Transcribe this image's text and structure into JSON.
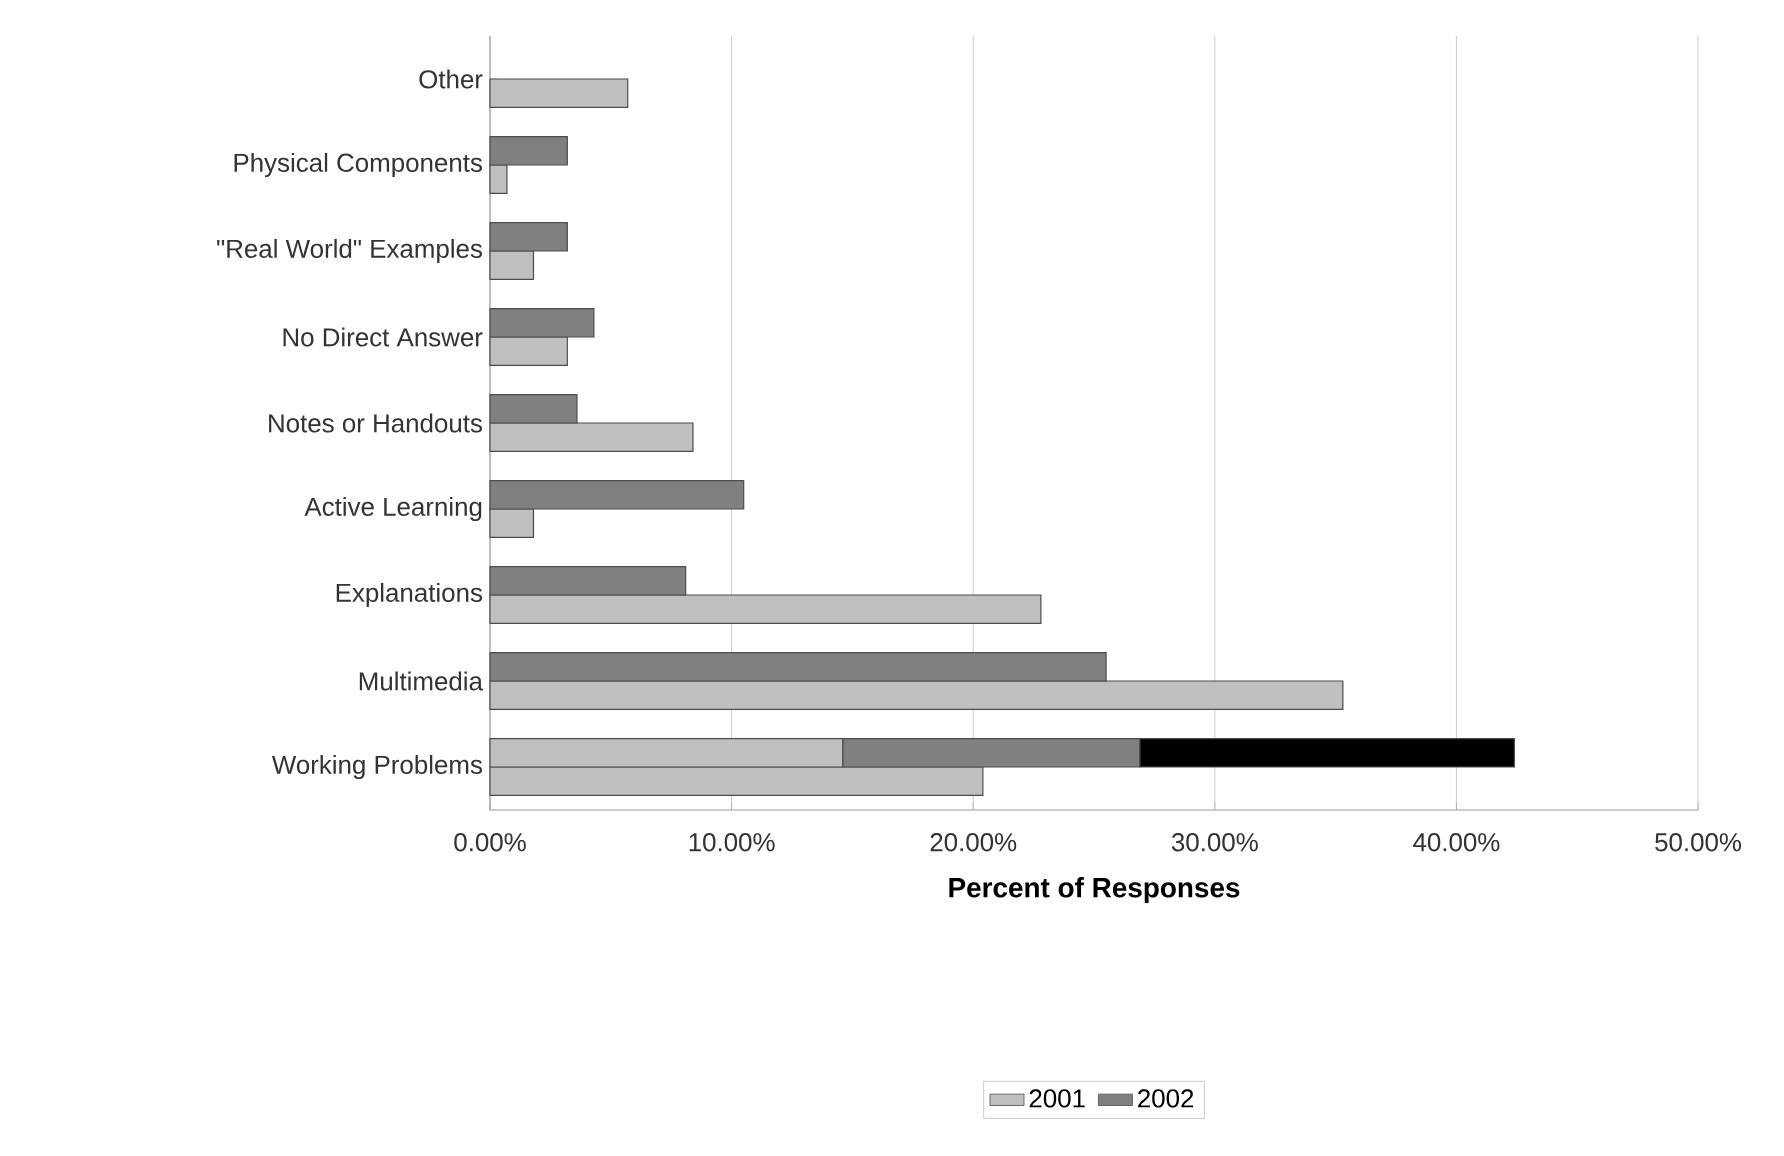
{
  "chart_data": {
    "type": "bar",
    "orientation": "horizontal",
    "xlabel": "Percent of Responses",
    "categories": [
      "Other",
      "Physical Components",
      "\"Real World\" Examples",
      "No Direct Answer",
      "Notes or Handouts",
      "Active Learning",
      "Explanations",
      "Multimedia",
      "Working Problems"
    ],
    "series": [
      {
        "name": "2001",
        "color": "#c0c0c0",
        "values": [
          5.7,
          0.7,
          1.8,
          3.2,
          8.4,
          1.8,
          22.8,
          35.3,
          20.4
        ]
      },
      {
        "name": "2002",
        "color": "#808080",
        "values": [
          null,
          3.2,
          3.2,
          4.3,
          3.6,
          10.5,
          8.1,
          25.5,
          12.3
        ],
        "base": [
          null,
          0,
          0,
          0,
          0,
          0,
          0,
          0,
          14.6
        ]
      },
      {
        "color": "#c0c0c0",
        "values": [
          null,
          null,
          null,
          null,
          null,
          null,
          null,
          null,
          14.6
        ]
      },
      {
        "color": "#000000",
        "values": [
          null,
          null,
          null,
          null,
          null,
          null,
          null,
          null,
          15.5
        ],
        "base": [
          null,
          null,
          null,
          null,
          null,
          null,
          null,
          null,
          26.9
        ]
      }
    ],
    "xlim": [
      0,
      50
    ],
    "xticks": [
      {
        "value": 0,
        "label": "0.00%"
      },
      {
        "value": 10,
        "label": "10.00%"
      },
      {
        "value": 20,
        "label": "20.00%"
      },
      {
        "value": 30,
        "label": "30.00%"
      },
      {
        "value": 40,
        "label": "40.00%"
      },
      {
        "value": 50,
        "label": "50.00%"
      }
    ],
    "grid": "x",
    "legend": "bottom"
  }
}
